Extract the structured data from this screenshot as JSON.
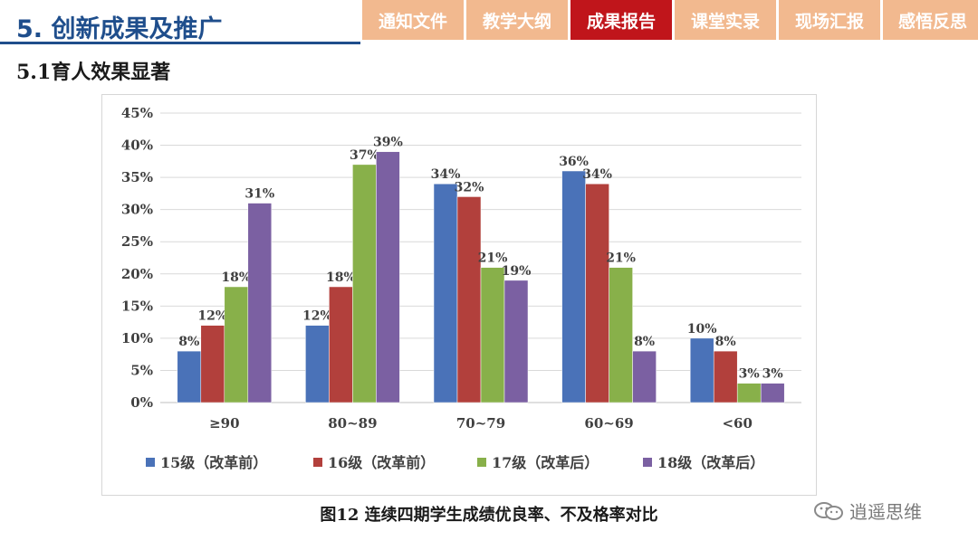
{
  "header": {
    "title": "5. 创新成果及推广",
    "tabs": [
      {
        "label": "通知文件",
        "active": false
      },
      {
        "label": "教学大纲",
        "active": false
      },
      {
        "label": "成果报告",
        "active": true
      },
      {
        "label": "课堂实录",
        "active": false
      },
      {
        "label": "现场汇报",
        "active": false
      },
      {
        "label": "感悟反思",
        "active": false
      }
    ]
  },
  "section_title": "5.1育人效果显著",
  "caption": "图12 连续四期学生成绩优良率、不及格率对比",
  "watermark": "逍遥思维",
  "colors": {
    "brand_blue": "#1f4e8c",
    "tab_inactive": "#f2b98f",
    "tab_active": "#c0151b"
  },
  "chart_data": {
    "type": "bar",
    "title": "",
    "xlabel": "",
    "ylabel": "",
    "categories": [
      "≥90",
      "80~89",
      "70~79",
      "60~69",
      "<60"
    ],
    "ylim": [
      0,
      45
    ],
    "yticks": [
      "0%",
      "5%",
      "10%",
      "15%",
      "20%",
      "25%",
      "30%",
      "35%",
      "40%",
      "45%"
    ],
    "grid": true,
    "legend_position": "bottom",
    "series": [
      {
        "name": "15级（改革前）",
        "color": "#4a72b8",
        "values": [
          8,
          12,
          34,
          36,
          10
        ]
      },
      {
        "name": "16级（改革前）",
        "color": "#b2403c",
        "values": [
          12,
          18,
          32,
          34,
          8
        ]
      },
      {
        "name": "17级（改革后）",
        "color": "#88b04a",
        "values": [
          18,
          37,
          21,
          21,
          3
        ]
      },
      {
        "name": "18级（改革后）",
        "color": "#7b60a2",
        "values": [
          31,
          39,
          19,
          8,
          3
        ]
      }
    ]
  }
}
